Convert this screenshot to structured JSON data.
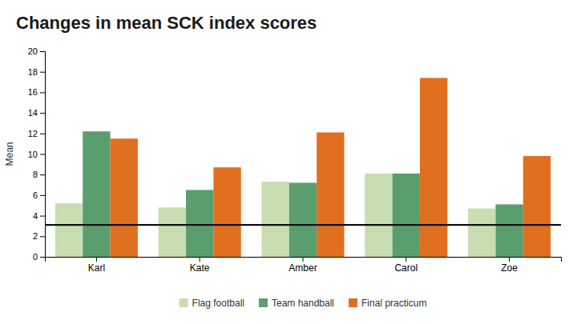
{
  "chart_data": {
    "type": "bar",
    "title": "Changes in mean SCK index scores",
    "categories": [
      "Karl",
      "Kate",
      "Amber",
      "Carol",
      "Zoe"
    ],
    "series": [
      {
        "name": "Flag football",
        "color": "#c8ddb0",
        "values": [
          5.2,
          4.8,
          7.3,
          8.1,
          4.7
        ]
      },
      {
        "name": "Team handball",
        "color": "#5a9e6f",
        "values": [
          12.2,
          6.5,
          7.2,
          8.1,
          5.1
        ]
      },
      {
        "name": "Final practicum",
        "color": "#e07020",
        "values": [
          11.5,
          8.7,
          12.1,
          17.4,
          9.8
        ]
      }
    ],
    "ylabel": "Mean",
    "ylim": [
      0,
      20
    ],
    "yticks": [
      0,
      2,
      4,
      6,
      8,
      10,
      12,
      14,
      16,
      18,
      20
    ],
    "reference_line": {
      "value": 3.1,
      "color": "#111111"
    },
    "grid": false,
    "legend": "bottom"
  }
}
